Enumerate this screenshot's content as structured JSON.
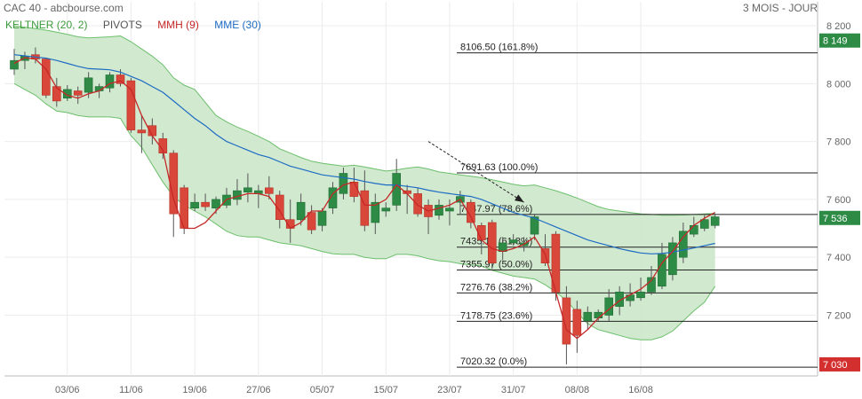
{
  "header": {
    "title": "CAC 40 - abcbourse.com",
    "period": "3 MOIS - JOUR"
  },
  "legend": [
    {
      "key": "keltner",
      "label": "KELTNER (20, 2)",
      "color": "#3c9a3c"
    },
    {
      "key": "pivots",
      "label": "PIVOTS",
      "color": "#555555"
    },
    {
      "key": "mmh",
      "label": "MMH (9)",
      "color": "#c62828"
    },
    {
      "key": "mme",
      "label": "MME (30)",
      "color": "#1e6bc4"
    }
  ],
  "colors": {
    "up": "#2e8b46",
    "down": "#d9473a",
    "keltner_fill": "#cfe8cc",
    "keltner_line": "#6cbf6c",
    "mmh": "#c62828",
    "mme": "#1e6bc4",
    "fib_line": "#222222",
    "last_price": "#2e8b46",
    "low_price": "#d32f2f",
    "arrow": "#222222"
  },
  "chart_data": {
    "type": "candlestick",
    "ylim": [
      6990,
      8240
    ],
    "yticks": [
      {
        "value": 8200,
        "label": "8 200"
      },
      {
        "value": 8000,
        "label": "8 000"
      },
      {
        "value": 7800,
        "label": "7 800"
      },
      {
        "value": 7600,
        "label": "7 600"
      },
      {
        "value": 7400,
        "label": "7 400"
      },
      {
        "value": 7200,
        "label": "7 200"
      }
    ],
    "xticks": [
      {
        "index": 5,
        "label": "03/06"
      },
      {
        "index": 11,
        "label": "11/06"
      },
      {
        "index": 17,
        "label": "19/06"
      },
      {
        "index": 23,
        "label": "27/06"
      },
      {
        "index": 29,
        "label": "05/07"
      },
      {
        "index": 35,
        "label": "15/07"
      },
      {
        "index": 41,
        "label": "23/07"
      },
      {
        "index": 47,
        "label": "31/07"
      },
      {
        "index": 53,
        "label": "08/08"
      },
      {
        "index": 59,
        "label": "16/08"
      }
    ],
    "candles": [
      {
        "o": 8050,
        "h": 8120,
        "l": 8030,
        "c": 8080
      },
      {
        "o": 8080,
        "h": 8110,
        "l": 8050,
        "c": 8095
      },
      {
        "o": 8100,
        "h": 8125,
        "l": 8070,
        "c": 8085
      },
      {
        "o": 8085,
        "h": 8090,
        "l": 7950,
        "c": 7960
      },
      {
        "o": 7990,
        "h": 8020,
        "l": 7920,
        "c": 7940
      },
      {
        "o": 7950,
        "h": 7995,
        "l": 7940,
        "c": 7980
      },
      {
        "o": 7975,
        "h": 7990,
        "l": 7930,
        "c": 7960
      },
      {
        "o": 7970,
        "h": 8040,
        "l": 7950,
        "c": 8020
      },
      {
        "o": 7975,
        "h": 8000,
        "l": 7950,
        "c": 7990
      },
      {
        "o": 7985,
        "h": 8040,
        "l": 7970,
        "c": 8030
      },
      {
        "o": 8030,
        "h": 8050,
        "l": 7990,
        "c": 8000
      },
      {
        "o": 8010,
        "h": 8020,
        "l": 7830,
        "c": 7840
      },
      {
        "o": 7840,
        "h": 7890,
        "l": 7760,
        "c": 7830
      },
      {
        "o": 7855,
        "h": 7880,
        "l": 7790,
        "c": 7820
      },
      {
        "o": 7810,
        "h": 7830,
        "l": 7740,
        "c": 7760
      },
      {
        "o": 7760,
        "h": 7770,
        "l": 7470,
        "c": 7550
      },
      {
        "o": 7640,
        "h": 7650,
        "l": 7480,
        "c": 7500
      },
      {
        "o": 7570,
        "h": 7620,
        "l": 7560,
        "c": 7590
      },
      {
        "o": 7590,
        "h": 7620,
        "l": 7560,
        "c": 7575
      },
      {
        "o": 7570,
        "h": 7610,
        "l": 7550,
        "c": 7600
      },
      {
        "o": 7580,
        "h": 7640,
        "l": 7570,
        "c": 7615
      },
      {
        "o": 7600,
        "h": 7670,
        "l": 7580,
        "c": 7630
      },
      {
        "o": 7625,
        "h": 7690,
        "l": 7590,
        "c": 7640
      },
      {
        "o": 7620,
        "h": 7650,
        "l": 7570,
        "c": 7630
      },
      {
        "o": 7640,
        "h": 7680,
        "l": 7600,
        "c": 7620
      },
      {
        "o": 7615,
        "h": 7630,
        "l": 7500,
        "c": 7530
      },
      {
        "o": 7530,
        "h": 7600,
        "l": 7450,
        "c": 7500
      },
      {
        "o": 7530,
        "h": 7620,
        "l": 7510,
        "c": 7590
      },
      {
        "o": 7555,
        "h": 7580,
        "l": 7480,
        "c": 7495
      },
      {
        "o": 7510,
        "h": 7570,
        "l": 7490,
        "c": 7560
      },
      {
        "o": 7570,
        "h": 7660,
        "l": 7550,
        "c": 7640
      },
      {
        "o": 7620,
        "h": 7710,
        "l": 7600,
        "c": 7690
      },
      {
        "o": 7660,
        "h": 7710,
        "l": 7590,
        "c": 7610
      },
      {
        "o": 7630,
        "h": 7700,
        "l": 7490,
        "c": 7510
      },
      {
        "o": 7520,
        "h": 7620,
        "l": 7480,
        "c": 7590
      },
      {
        "o": 7560,
        "h": 7590,
        "l": 7540,
        "c": 7570
      },
      {
        "o": 7580,
        "h": 7740,
        "l": 7560,
        "c": 7690
      },
      {
        "o": 7630,
        "h": 7650,
        "l": 7550,
        "c": 7620
      },
      {
        "o": 7620,
        "h": 7640,
        "l": 7540,
        "c": 7550
      },
      {
        "o": 7580,
        "h": 7600,
        "l": 7480,
        "c": 7540
      },
      {
        "o": 7545,
        "h": 7600,
        "l": 7530,
        "c": 7580
      },
      {
        "o": 7560,
        "h": 7600,
        "l": 7510,
        "c": 7570
      },
      {
        "o": 7590,
        "h": 7630,
        "l": 7550,
        "c": 7610
      },
      {
        "o": 7590,
        "h": 7600,
        "l": 7500,
        "c": 7520
      },
      {
        "o": 7510,
        "h": 7520,
        "l": 7410,
        "c": 7460
      },
      {
        "o": 7520,
        "h": 7530,
        "l": 7360,
        "c": 7380
      },
      {
        "o": 7420,
        "h": 7470,
        "l": 7390,
        "c": 7450
      },
      {
        "o": 7450,
        "h": 7480,
        "l": 7440,
        "c": 7460
      },
      {
        "o": 7440,
        "h": 7470,
        "l": 7420,
        "c": 7450
      },
      {
        "o": 7480,
        "h": 7550,
        "l": 7460,
        "c": 7540
      },
      {
        "o": 7430,
        "h": 7480,
        "l": 7370,
        "c": 7380
      },
      {
        "o": 7480,
        "h": 7490,
        "l": 7250,
        "c": 7280
      },
      {
        "o": 7260,
        "h": 7300,
        "l": 7030,
        "c": 7100
      },
      {
        "o": 7220,
        "h": 7250,
        "l": 7070,
        "c": 7130
      },
      {
        "o": 7180,
        "h": 7230,
        "l": 7150,
        "c": 7210
      },
      {
        "o": 7190,
        "h": 7220,
        "l": 7180,
        "c": 7210
      },
      {
        "o": 7200,
        "h": 7290,
        "l": 7180,
        "c": 7260
      },
      {
        "o": 7230,
        "h": 7300,
        "l": 7200,
        "c": 7280
      },
      {
        "o": 7250,
        "h": 7310,
        "l": 7230,
        "c": 7270
      },
      {
        "o": 7260,
        "h": 7330,
        "l": 7250,
        "c": 7280
      },
      {
        "o": 7280,
        "h": 7370,
        "l": 7270,
        "c": 7330
      },
      {
        "o": 7300,
        "h": 7450,
        "l": 7290,
        "c": 7410
      },
      {
        "o": 7340,
        "h": 7470,
        "l": 7320,
        "c": 7450
      },
      {
        "o": 7400,
        "h": 7520,
        "l": 7380,
        "c": 7490
      },
      {
        "o": 7480,
        "h": 7540,
        "l": 7470,
        "c": 7510
      },
      {
        "o": 7500,
        "h": 7545,
        "l": 7490,
        "c": 7530
      },
      {
        "o": 7510,
        "h": 7550,
        "l": 7500,
        "c": 7540
      }
    ],
    "keltner_upper": [
      8200,
      8195,
      8190,
      8185,
      8178,
      8170,
      8162,
      8158,
      8160,
      8162,
      8165,
      8145,
      8120,
      8095,
      8065,
      8020,
      7995,
      7980,
      7935,
      7890,
      7868,
      7850,
      7835,
      7818,
      7800,
      7775,
      7760,
      7745,
      7732,
      7725,
      7720,
      7715,
      7718,
      7712,
      7705,
      7698,
      7702,
      7708,
      7712,
      7705,
      7695,
      7690,
      7685,
      7680,
      7675,
      7668,
      7660,
      7652,
      7647,
      7650,
      7640,
      7630,
      7618,
      7605,
      7590,
      7575,
      7565,
      7560,
      7555,
      7550,
      7548,
      7545,
      7545,
      7546,
      7548,
      7550,
      7552
    ],
    "keltner_lower": [
      8000,
      7980,
      7960,
      7930,
      7905,
      7900,
      7890,
      7885,
      7885,
      7885,
      7880,
      7820,
      7780,
      7720,
      7660,
      7610,
      7580,
      7560,
      7540,
      7515,
      7490,
      7475,
      7470,
      7470,
      7460,
      7450,
      7445,
      7440,
      7430,
      7420,
      7412,
      7410,
      7410,
      7400,
      7395,
      7395,
      7410,
      7410,
      7405,
      7395,
      7388,
      7385,
      7378,
      7374,
      7370,
      7355,
      7345,
      7335,
      7330,
      7325,
      7305,
      7280,
      7250,
      7210,
      7170,
      7150,
      7140,
      7130,
      7120,
      7115,
      7115,
      7125,
      7145,
      7180,
      7215,
      7245,
      7300
    ],
    "mme": [
      8100,
      8096,
      8092,
      8088,
      8080,
      8070,
      8060,
      8052,
      8050,
      8048,
      8040,
      8025,
      8010,
      7990,
      7970,
      7940,
      7910,
      7880,
      7855,
      7825,
      7800,
      7785,
      7770,
      7755,
      7745,
      7730,
      7715,
      7705,
      7695,
      7685,
      7680,
      7675,
      7670,
      7662,
      7655,
      7650,
      7650,
      7645,
      7640,
      7632,
      7625,
      7620,
      7615,
      7610,
      7600,
      7585,
      7570,
      7555,
      7545,
      7535,
      7520,
      7505,
      7490,
      7475,
      7460,
      7450,
      7440,
      7430,
      7422,
      7415,
      7412,
      7413,
      7418,
      7425,
      7432,
      7440,
      7448
    ],
    "mmh": [
      8070,
      8090,
      8085,
      8050,
      7985,
      7960,
      7950,
      7965,
      7975,
      8000,
      8010,
      7980,
      7890,
      7820,
      7770,
      7600,
      7500,
      7500,
      7520,
      7560,
      7600,
      7610,
      7620,
      7620,
      7610,
      7560,
      7500,
      7520,
      7560,
      7560,
      7620,
      7650,
      7660,
      7580,
      7580,
      7600,
      7650,
      7620,
      7580,
      7560,
      7570,
      7580,
      7600,
      7540,
      7460,
      7430,
      7420,
      7430,
      7445,
      7470,
      7410,
      7280,
      7150,
      7120,
      7150,
      7190,
      7220,
      7250,
      7270,
      7290,
      7320,
      7380,
      7420,
      7470,
      7510,
      7535,
      7555
    ],
    "fibonacci": [
      {
        "value": 8106.5,
        "label": "8106.50  (161.8%)"
      },
      {
        "value": 7691.63,
        "label": "7691.63  (100.0%)"
      },
      {
        "value": 7547.97,
        "label": "7547.97  (78.6%)"
      },
      {
        "value": 7435.19,
        "label": "7435.19  (61.8%)"
      },
      {
        "value": 7355.97,
        "label": "7355.97  (50.0%)"
      },
      {
        "value": 7276.76,
        "label": "7276.76  (38.2%)"
      },
      {
        "value": 7178.75,
        "label": "7178.75  (23.6%)"
      },
      {
        "value": 7020.32,
        "label": "7020.32  (0.0%)"
      }
    ],
    "price_tags": [
      {
        "value": 8149,
        "label": "8 149",
        "color": "#2e8b46"
      },
      {
        "value": 7536,
        "label": "7 536",
        "color": "#2e8b46"
      },
      {
        "value": 7030,
        "label": "7 030",
        "color": "#d32f2f"
      }
    ],
    "trend_arrow": {
      "from": {
        "index": 39,
        "value": 7800
      },
      "to": {
        "index": 48,
        "value": 7590
      }
    }
  }
}
